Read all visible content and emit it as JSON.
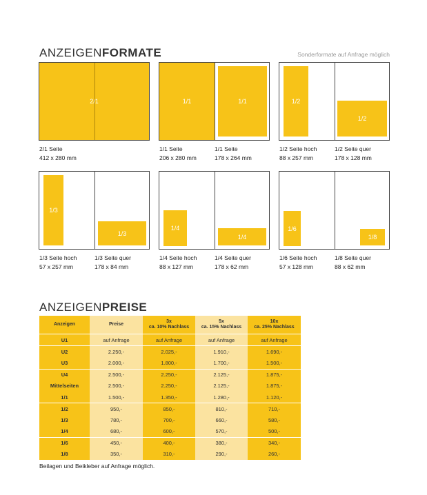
{
  "formats": {
    "title_light": "ANZEIGEN",
    "title_bold": "FORMATE",
    "note": "Sonderformate auf Anfrage möglich",
    "ad_labels": {
      "a21": "2/1",
      "a11a": "1/1",
      "a11b": "1/1",
      "a12h": "1/2",
      "a12q": "1/2",
      "a13h": "1/3",
      "a13q": "1/3",
      "a14h": "1/4",
      "a14q": "1/4",
      "a16h": "1/6",
      "a18q": "1/8"
    },
    "captions": {
      "c21": {
        "name": "2/1 Seite",
        "size": "412 x 280 mm"
      },
      "c11a": {
        "name": "1/1 Seite",
        "size": "206 x 280 mm"
      },
      "c11b": {
        "name": "1/1 Seite",
        "size": "178 x 264 mm"
      },
      "c12h": {
        "name": "1/2 Seite hoch",
        "size": "88 x 257 mm"
      },
      "c12q": {
        "name": "1/2 Seite quer",
        "size": "178 x 128 mm"
      },
      "c13h": {
        "name": "1/3 Seite hoch",
        "size": "57 x 257 mm"
      },
      "c13q": {
        "name": "1/3 Seite quer",
        "size": "178 x 84 mm"
      },
      "c14h": {
        "name": "1/4 Seite hoch",
        "size": "88 x 127 mm"
      },
      "c14q": {
        "name": "1/4 Seite quer",
        "size": "178 x 62 mm"
      },
      "c16h": {
        "name": "1/6 Seite hoch",
        "size": "57 x 128 mm"
      },
      "c18q": {
        "name": "1/8 Seite quer",
        "size": "88 x 62 mm"
      }
    }
  },
  "prices": {
    "title_light": "ANZEIGEN",
    "title_bold": "PREISE",
    "headers": {
      "h0": "Anzeigen",
      "h1": "Preise",
      "h2a": "3x",
      "h2b": "ca. 10% Nachlass",
      "h3a": "5x",
      "h3b": "ca. 15% Nachlass",
      "h4a": "10x",
      "h4b": "ca. 25% Nachlass"
    },
    "rows": [
      [
        "U1",
        "auf Anfrage",
        "auf Anfrage",
        "auf Anfrage",
        "auf Anfrage"
      ],
      [
        "U2",
        "2.250,-",
        "2.025,-",
        "1.910,-",
        "1.690,-"
      ],
      [
        "U3",
        "2.000,-",
        "1.800,-",
        "1.700,-",
        "1.500,-"
      ],
      [
        "U4",
        "2.500,-",
        "2.250,-",
        "2.125,-",
        "1.875,-"
      ],
      [
        "Mittelseiten",
        "2.500,-",
        "2.250,-",
        "2.125,-",
        "1.875,-"
      ],
      [
        "1/1",
        "1.500,-",
        "1.350,-",
        "1.280,-",
        "1.120,-"
      ],
      [
        "1/2",
        "950,-",
        "850,-",
        "810,-",
        "710,-"
      ],
      [
        "1/3",
        "780,-",
        "700,-",
        "660,-",
        "580,-"
      ],
      [
        "1/4",
        "680,-",
        "600,-",
        "570,-",
        "500,-"
      ],
      [
        "1/6",
        "450,-",
        "400,-",
        "380,-",
        "340,-"
      ],
      [
        "1/8",
        "350,-",
        "310,-",
        "290,-",
        "260,-"
      ]
    ],
    "footnote": "Beilagen und Beikleber auf Anfrage möglich."
  }
}
